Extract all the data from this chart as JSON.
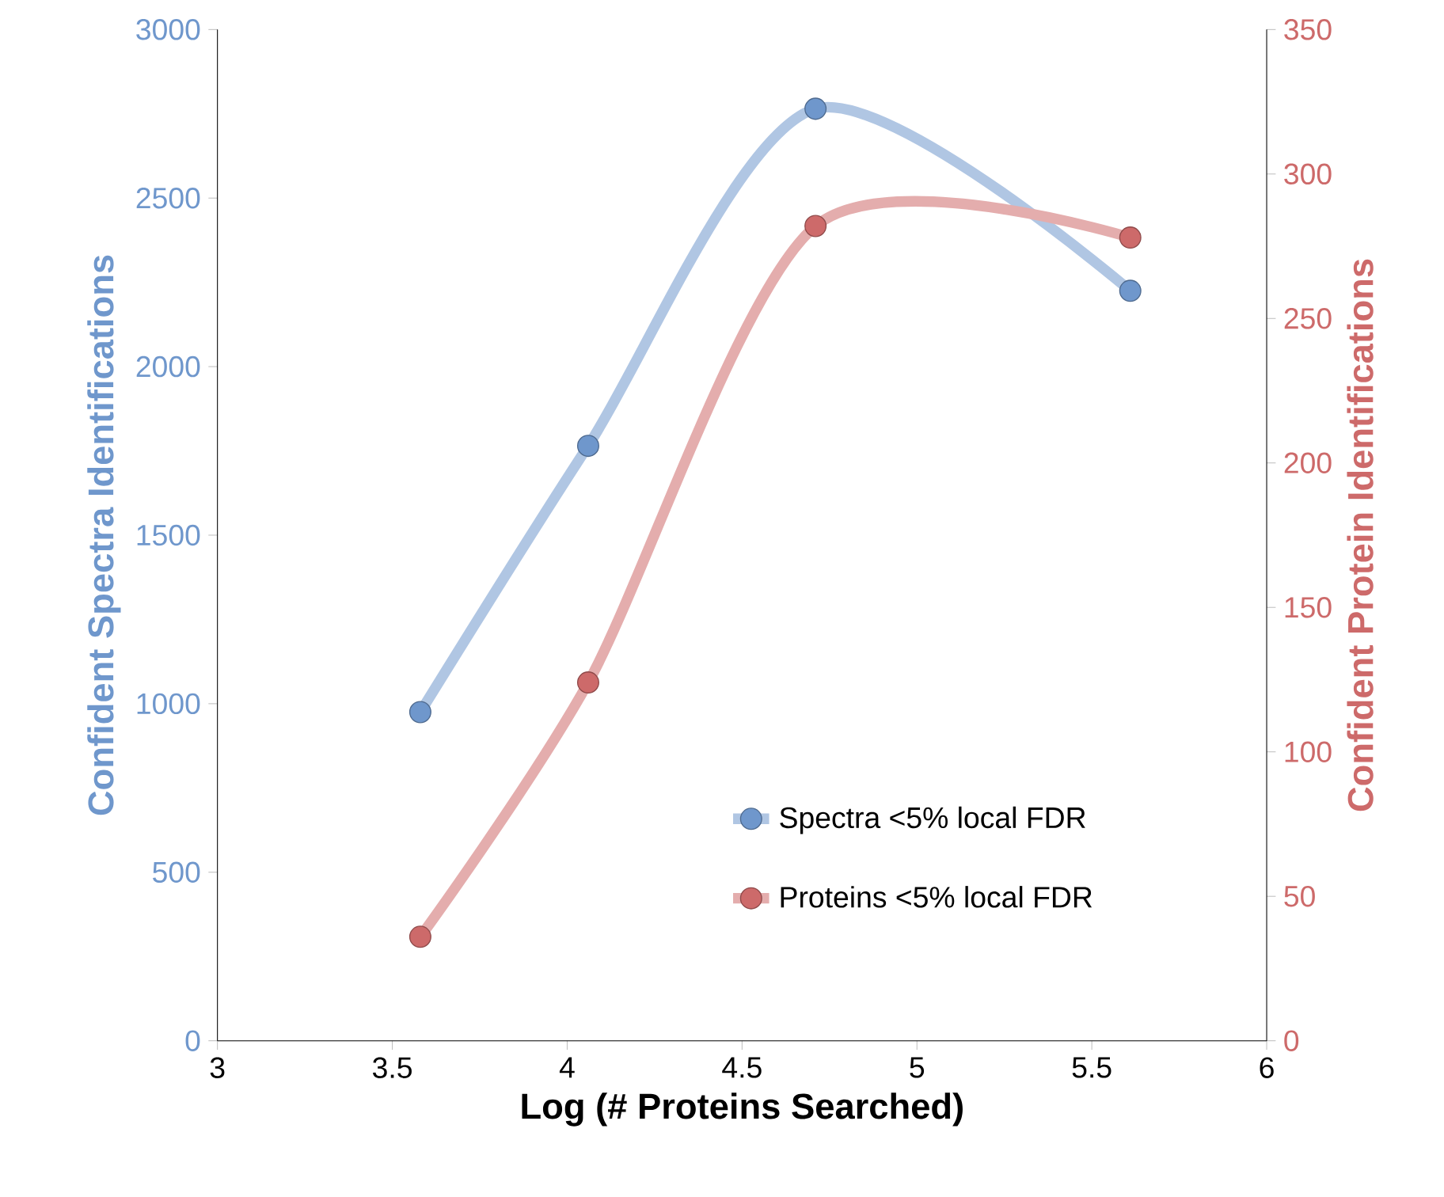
{
  "chart_data": {
    "type": "line",
    "xlabel": "Log (# Proteins Searched)",
    "ylabel": "Confident Spectra Identifications",
    "y2label": "Confident Protein Identifications",
    "x": [
      3.58,
      4.06,
      4.71,
      5.61
    ],
    "series": [
      {
        "name": "Spectra <5% local FDR",
        "color": "#6f97cc",
        "values": [
          975,
          1765,
          2765,
          2225
        ]
      },
      {
        "name": "Proteins <5% local FDR",
        "color": "#cd6a6a",
        "axis": "y2",
        "values": [
          36,
          124,
          282,
          278
        ]
      }
    ],
    "xlim": [
      3,
      6
    ],
    "xticks": [
      3,
      3.5,
      4,
      4.5,
      5,
      5.5,
      6
    ],
    "ylim": [
      0,
      3000
    ],
    "yticks": [
      0,
      500,
      1000,
      1500,
      2000,
      2500,
      3000
    ],
    "y2lim": [
      0,
      350
    ],
    "y2ticks": [
      0,
      50,
      100,
      150,
      200,
      250,
      300,
      350
    ],
    "marker": "circle",
    "line_style": "solid",
    "grid": false,
    "legend": "bottom right"
  }
}
